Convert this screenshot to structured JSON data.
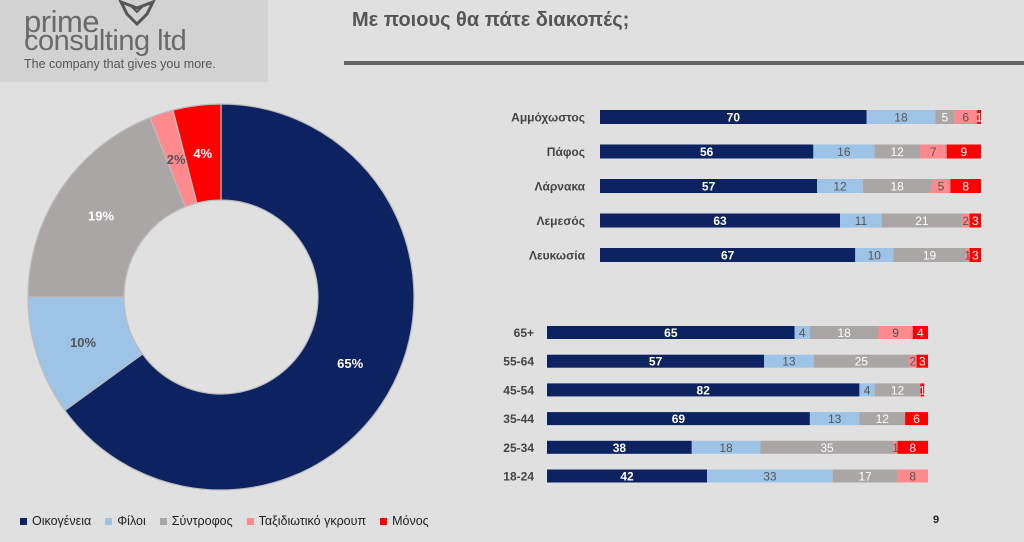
{
  "header": {
    "logo_line1": "prime",
    "logo_line2": "consulting ltd",
    "logo_tagline": "The company that gives you more.",
    "title": "Με ποιους θα πάτε διακοπές;",
    "page_number": "9"
  },
  "colors": {
    "family": "#0d2361",
    "friends": "#9dc3e6",
    "partner": "#aaa6a6",
    "group": "#ff8a8e",
    "alone": "#ff0000",
    "background": "#e0e0e0"
  },
  "chart_data": [
    {
      "type": "pie",
      "variant": "donut",
      "categories": [
        "Οικογένεια",
        "Φίλοι",
        "Σύντροφος",
        "Ταξιδιωτικό γκρουπ",
        "Μόνος"
      ],
      "values": [
        65,
        10,
        19,
        2,
        4
      ],
      "labels": [
        "65%",
        "10%",
        "19%",
        "2%",
        "4%"
      ],
      "legend": "bottom"
    },
    {
      "type": "bar",
      "orientation": "horizontal",
      "stacked": true,
      "categories": [
        "Αμμόχωστος",
        "Πάφος",
        "Λάρνακα",
        "Λεμεσός",
        "Λευκωσία"
      ],
      "series": [
        {
          "name": "Οικογένεια",
          "values": [
            70,
            56,
            57,
            63,
            67
          ]
        },
        {
          "name": "Φίλοι",
          "values": [
            18,
            16,
            12,
            11,
            10
          ]
        },
        {
          "name": "Σύντροφος",
          "values": [
            5,
            12,
            18,
            21,
            19
          ]
        },
        {
          "name": "Ταξιδιωτικό γκρουπ",
          "values": [
            6,
            7,
            5,
            2,
            1
          ]
        },
        {
          "name": "Μόνος",
          "values": [
            1,
            9,
            8,
            3,
            3
          ]
        }
      ],
      "xlim": [
        0,
        100
      ]
    },
    {
      "type": "bar",
      "orientation": "horizontal",
      "stacked": true,
      "categories": [
        "65+",
        "55-64",
        "45-54",
        "35-44",
        "25-34",
        "18-24"
      ],
      "series": [
        {
          "name": "Οικογένεια",
          "values": [
            65,
            57,
            82,
            69,
            38,
            42
          ]
        },
        {
          "name": "Φίλοι",
          "values": [
            4,
            13,
            4,
            13,
            18,
            33
          ]
        },
        {
          "name": "Σύντροφος",
          "values": [
            18,
            25,
            12,
            12,
            35,
            17
          ]
        },
        {
          "name": "Ταξιδιωτικό γκρουπ",
          "values": [
            9,
            2,
            null,
            null,
            1,
            8
          ]
        },
        {
          "name": "Μόνος",
          "values": [
            4,
            3,
            1,
            6,
            8,
            null
          ]
        }
      ],
      "xlim": [
        0,
        100
      ]
    }
  ]
}
